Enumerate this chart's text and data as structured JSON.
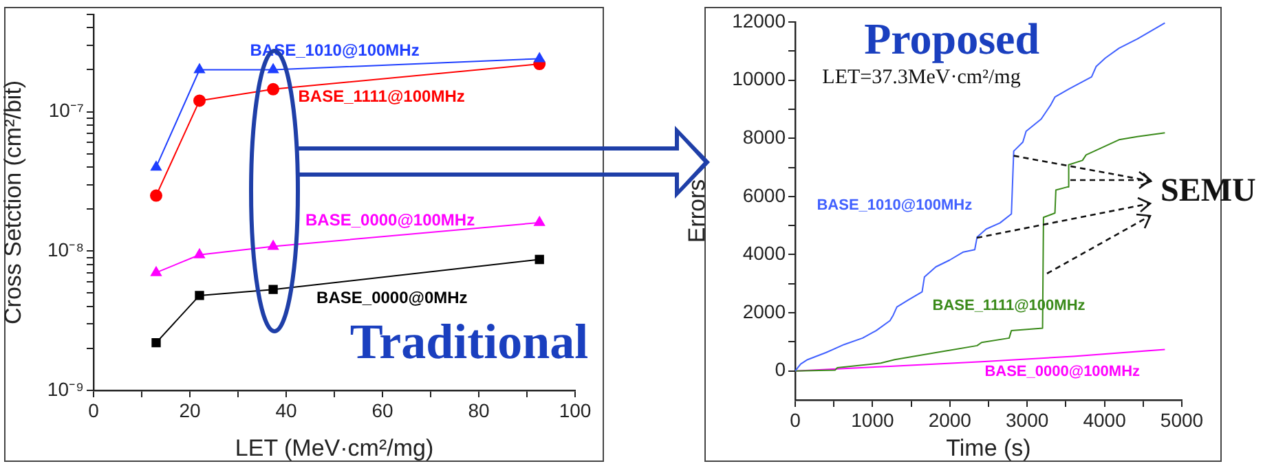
{
  "chart_data": [
    {
      "type": "line",
      "title": "Traditional",
      "xlabel": "LET (MeV·cm²/mg)",
      "ylabel": "Cross Setction (cm²/bit)",
      "x": [
        13,
        22,
        37.3,
        92.6
      ],
      "series": [
        {
          "name": "BASE_1010@100MHz",
          "color": "#1f3fff",
          "marker": "triangle",
          "values": [
            4e-08,
            2e-07,
            2e-07,
            2.4e-07
          ]
        },
        {
          "name": "BASE_1111@100MHz",
          "color": "#ff0000",
          "marker": "circle",
          "values": [
            2.5e-08,
            1.2e-07,
            1.45e-07,
            2.2e-07
          ]
        },
        {
          "name": "BASE_0000@100MHz",
          "color": "#ff00ff",
          "marker": "triangle",
          "values": [
            7e-09,
            9.4e-09,
            1.08e-08,
            1.6e-08
          ]
        },
        {
          "name": "BASE_0000@0MHz",
          "color": "#000000",
          "marker": "square",
          "values": [
            2.2e-09,
            4.8e-09,
            5.3e-09,
            8.7e-09
          ]
        }
      ],
      "log": "y",
      "xlim": [
        0,
        100
      ],
      "xticks": [
        0,
        {
          "value": 10,
          "label": null
        },
        20,
        {
          "value": 30,
          "label": null
        },
        40,
        {
          "value": 50,
          "label": null
        },
        60,
        {
          "value": 70,
          "label": null
        },
        80,
        {
          "value": 90,
          "label": null
        },
        100
      ],
      "ylim": [
        1e-09,
        5e-07
      ],
      "yticks": [
        {
          "value": 1e-09,
          "label": "10⁻⁹"
        },
        {
          "value": 2e-09,
          "label": null
        },
        {
          "value": 3e-09,
          "label": null
        },
        {
          "value": 4e-09,
          "label": null
        },
        {
          "value": 5e-09,
          "label": null
        },
        {
          "value": 6e-09,
          "label": null
        },
        {
          "value": 7e-09,
          "label": null
        },
        {
          "value": 8e-09,
          "label": null
        },
        {
          "value": 9e-09,
          "label": null
        },
        {
          "value": 1e-08,
          "label": "10⁻⁸"
        },
        {
          "value": 2e-08,
          "label": null
        },
        {
          "value": 3e-08,
          "label": null
        },
        {
          "value": 4e-08,
          "label": null
        },
        {
          "value": 5e-08,
          "label": null
        },
        {
          "value": 6e-08,
          "label": null
        },
        {
          "value": 7e-08,
          "label": null
        },
        {
          "value": 8e-08,
          "label": null
        },
        {
          "value": 9e-08,
          "label": null
        },
        {
          "value": 1e-07,
          "label": "10⁻⁷"
        },
        {
          "value": 2e-07,
          "label": null
        },
        {
          "value": 3e-07,
          "label": null
        },
        {
          "value": 4e-07,
          "label": null
        },
        {
          "value": 5e-07,
          "label": null
        }
      ],
      "line_style": "solid"
    },
    {
      "type": "line",
      "title": "Proposed",
      "xlabel": "Time (s)",
      "ylabel": "Errors",
      "annotations": [
        "LET=37.3MeV·cm²/mg",
        {
          "text": "SEMU",
          "x": 2826,
          "y": 7400
        }
      ],
      "series": [
        {
          "name": "BASE_1010@100MHz",
          "color": "#4060ff",
          "x": [
            0,
            71,
            160,
            397,
            634,
            871,
            1049,
            1226,
            1268,
            1315,
            1463,
            1641,
            1671,
            1819,
            1996,
            2174,
            2322,
            2352,
            2470,
            2648,
            2796,
            2826,
            2944,
            2986,
            3181,
            3300,
            3359,
            3537,
            3833,
            3892,
            4010,
            4188,
            4425,
            4781
          ],
          "values": [
            0,
            240,
            390,
            630,
            910,
            1130,
            1390,
            1730,
            1920,
            2200,
            2440,
            2720,
            3230,
            3580,
            3810,
            4090,
            4170,
            4600,
            4880,
            5090,
            5400,
            7560,
            7870,
            8240,
            8660,
            9130,
            9420,
            9690,
            10110,
            10470,
            10760,
            11100,
            11420,
            11970
          ]
        },
        {
          "name": "BASE_1111@100MHz",
          "color": "#3a8a1a",
          "x": [
            0,
            515,
            545,
            1108,
            1286,
            1819,
            2352,
            2411,
            2767,
            2796,
            3199,
            3211,
            3359,
            3371,
            3525,
            3537,
            3715,
            3762,
            4188,
            4425,
            4781
          ],
          "values": [
            0,
            30,
            110,
            270,
            390,
            630,
            870,
            980,
            1130,
            1390,
            1470,
            5280,
            5430,
            6220,
            6330,
            7090,
            7240,
            7430,
            7950,
            8060,
            8190
          ]
        },
        {
          "name": "BASE_0000@100MHz",
          "color": "#ff00ff",
          "x": [
            0,
            1226,
            2411,
            3596,
            4781
          ],
          "values": [
            0,
            160,
            320,
            500,
            740
          ]
        }
      ],
      "marker": "none",
      "line_style": "solid",
      "xlim": [
        0,
        5000
      ],
      "xticks": [
        0,
        {
          "value": 500,
          "label": null
        },
        1000,
        {
          "value": 1500,
          "label": null
        },
        2000,
        {
          "value": 2500,
          "label": null
        },
        3000,
        {
          "value": 3500,
          "label": null
        },
        4000,
        {
          "value": 4500,
          "label": null
        },
        5000
      ],
      "ylim": [
        -1000,
        12000
      ],
      "yticks": [
        0,
        {
          "value": 1000,
          "label": null
        },
        2000,
        {
          "value": 3000,
          "label": null
        },
        4000,
        {
          "value": 5000,
          "label": null
        },
        6000,
        {
          "value": 7000,
          "label": null
        },
        8000,
        {
          "value": 9000,
          "label": null
        },
        10000,
        {
          "value": 11000,
          "label": null
        },
        12000
      ]
    }
  ]
}
